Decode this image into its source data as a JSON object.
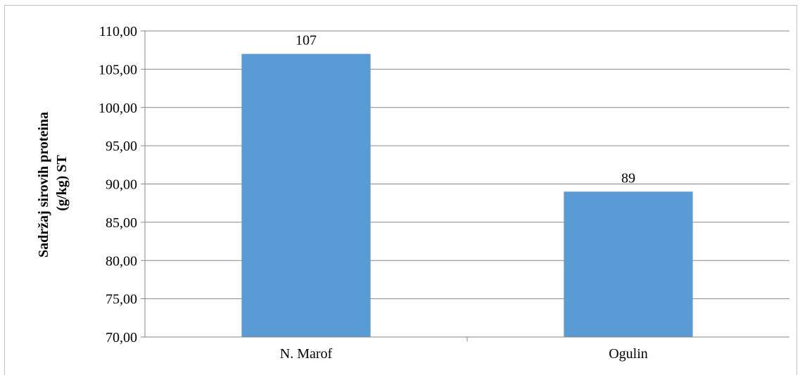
{
  "chart_data": {
    "type": "bar",
    "categories": [
      "N. Marof",
      "Ogulin"
    ],
    "values": [
      107,
      89
    ],
    "data_labels": [
      "107",
      "89"
    ],
    "title": "",
    "xlabel": "",
    "ylabel_lines": [
      "Sadržaj sirovih proteina",
      "(g/kg) ST"
    ],
    "ylim": [
      70,
      110
    ],
    "yticks": [
      "70,00",
      "75,00",
      "80,00",
      "85,00",
      "90,00",
      "95,00",
      "100,00",
      "105,00",
      "110,00"
    ],
    "grid": "horizontal",
    "legend": "none",
    "colors": {
      "bar": "#5b9bd5",
      "gridline": "#868686",
      "axis": "#868686"
    }
  }
}
